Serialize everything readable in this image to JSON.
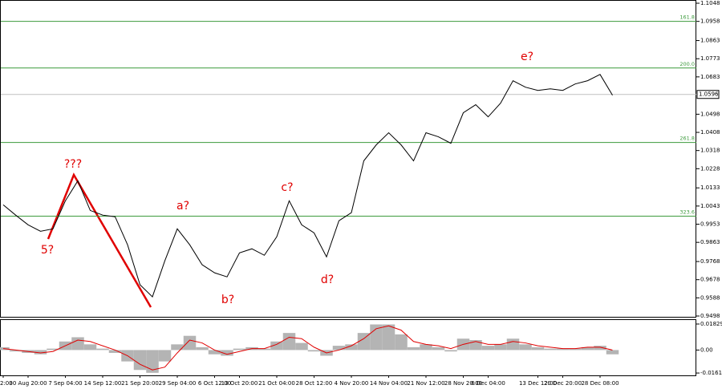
{
  "chart_data": [
    {
      "type": "line",
      "categories": [
        "2:00",
        null,
        "30 Aug 20:00",
        null,
        null,
        "7 Sep 04:00",
        null,
        null,
        "14 Sep 12:00",
        null,
        null,
        "21 Sep 20:00",
        null,
        null,
        "29 Sep 04:00",
        null,
        null,
        "6 Oct 12:00",
        null,
        "13 Oct 20:00",
        null,
        null,
        "21 Oct 04:00",
        null,
        null,
        "28 Oct 12:00",
        null,
        null,
        "4 Nov 20:00",
        null,
        null,
        "14 Nov 04:00",
        null,
        null,
        "21 Nov 12:00",
        null,
        null,
        "28 Nov 20:00",
        null,
        "6 Dec 04:00",
        null,
        null,
        null,
        "13 Dec 12:00",
        null,
        "20 Dec 20:00",
        null,
        null,
        "28 Dec 08:00",
        null
      ],
      "series": [
        {
          "color": "#000000",
          "values": [
            1.0049,
            0.9998,
            0.995,
            0.9918,
            0.993,
            1.0069,
            1.0168,
            1.0021,
            0.9998,
            0.999,
            0.9851,
            0.9653,
            0.9593,
            0.9772,
            0.993,
            0.9851,
            0.9752,
            0.9712,
            0.9692,
            0.9811,
            0.9831,
            0.9799,
            0.9891,
            1.0069,
            0.995,
            0.991,
            0.9791,
            0.997,
            1.001,
            1.0267,
            1.0346,
            1.0406,
            1.0346,
            1.0267,
            1.0406,
            1.0386,
            1.0354,
            1.0505,
            1.0545,
            1.0485,
            1.0553,
            1.0664,
            1.0632,
            1.0616,
            1.0624,
            1.0616,
            1.0648,
            1.0664,
            1.0695,
            1.0592
          ]
        }
      ],
      "ylim": [
        0.9494,
        1.106
      ],
      "yticks": [
        1.1048,
        1.0958,
        1.0863,
        1.0773,
        1.0683,
        1.0498,
        1.0408,
        1.0318,
        1.0228,
        1.0133,
        1.0043,
        0.9953,
        0.9863,
        0.9768,
        0.9678,
        0.9588,
        0.9498
      ],
      "current_price": 1.0596,
      "levels": [
        {
          "value": 1.0958,
          "label": "161.8"
        },
        {
          "value": 1.0727,
          "label": "200.0"
        },
        {
          "value": 1.0358,
          "label": "261.8"
        },
        {
          "value": 0.9993,
          "label": "323.6"
        }
      ],
      "level_color": "#3c9a3c",
      "annotations": [
        "5?",
        "???",
        "a?",
        "b?",
        "c?",
        "d?",
        "e?"
      ],
      "annotation_color": "#e00000"
    },
    {
      "type": "bar",
      "series": [
        {
          "color": "#b4b4b4",
          "values": [
            0.002,
            -0.001,
            -0.002,
            -0.003,
            0.001,
            0.006,
            0.009,
            0.004,
            0.001,
            -0.002,
            -0.008,
            -0.014,
            -0.016,
            -0.008,
            0.004,
            0.01,
            0.002,
            -0.003,
            -0.004,
            0.001,
            0.002,
            0.001,
            0.006,
            0.012,
            0.005,
            -0.001,
            -0.004,
            0.003,
            0.004,
            0.012,
            0.018,
            0.018,
            0.011,
            0.002,
            0.004,
            0.002,
            -0.001,
            0.008,
            0.007,
            0.003,
            0.004,
            0.008,
            0.004,
            0.002,
            0.001,
            0.001,
            0.001,
            0.002,
            0.003,
            -0.003
          ]
        },
        {
          "color": "#e00000",
          "values": [
            0.001,
            0.0,
            -0.001,
            -0.002,
            -0.001,
            0.003,
            0.007,
            0.006,
            0.003,
            0.0,
            -0.004,
            -0.01,
            -0.014,
            -0.012,
            -0.002,
            0.007,
            0.005,
            0.0,
            -0.003,
            -0.001,
            0.001,
            0.001,
            0.004,
            0.009,
            0.008,
            0.002,
            -0.002,
            0.0,
            0.003,
            0.008,
            0.015,
            0.017,
            0.014,
            0.006,
            0.004,
            0.003,
            0.001,
            0.004,
            0.006,
            0.004,
            0.004,
            0.006,
            0.005,
            0.003,
            0.002,
            0.001,
            0.001,
            0.002,
            0.002,
            0.0
          ]
        }
      ],
      "ylim": [
        -0.0178,
        0.0211
      ],
      "yticks": [
        0.01829,
        {
          "value": 0,
          "label": "0.00"
        },
        -0.01615
      ]
    }
  ]
}
